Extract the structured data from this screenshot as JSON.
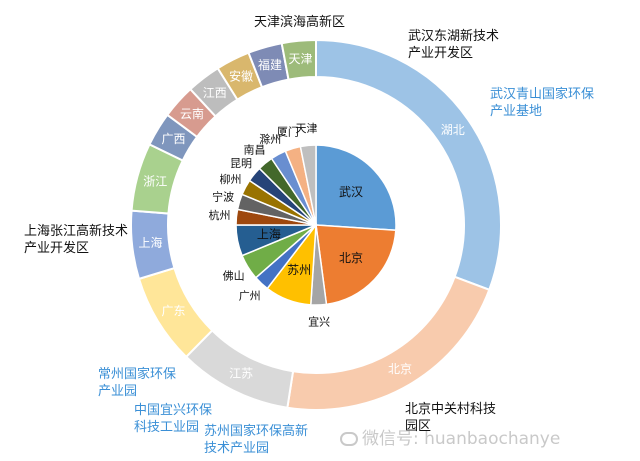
{
  "chart_data": {
    "type": "pie",
    "title": "",
    "outer_ring": {
      "slices": [
        {
          "label": "湖北",
          "value": 31,
          "color": "#9dc3e6"
        },
        {
          "label": "北京",
          "value": 22,
          "color": "#f8cbad"
        },
        {
          "label": "江苏",
          "value": 10,
          "color": "#d9d9d9"
        },
        {
          "label": "广东",
          "value": 8,
          "color": "#ffe699"
        },
        {
          "label": "上海",
          "value": 6,
          "color": "#8faadc"
        },
        {
          "label": "浙江",
          "value": 6,
          "color": "#a9d18e"
        },
        {
          "label": "广西",
          "value": 3,
          "color": "#7f96bd"
        },
        {
          "label": "云南",
          "value": 3,
          "color": "#d79b8f"
        },
        {
          "label": "江西",
          "value": 3,
          "color": "#bdbdbd"
        },
        {
          "label": "安徽",
          "value": 3,
          "color": "#d9b76d"
        },
        {
          "label": "福建",
          "value": 3,
          "color": "#7e8bb5"
        },
        {
          "label": "天津",
          "value": 3,
          "color": "#9dbb7a"
        }
      ]
    },
    "inner_pie": {
      "slices": [
        {
          "label": "武汉",
          "value": 25,
          "color": "#5b9bd5"
        },
        {
          "label": "北京",
          "value": 21,
          "color": "#ed7d31"
        },
        {
          "label": "宜兴",
          "value": 3,
          "color": "#a5a5a5"
        },
        {
          "label": "苏州",
          "value": 9,
          "color": "#ffc000"
        },
        {
          "label": "广州",
          "value": 3,
          "color": "#4472c4"
        },
        {
          "label": "佛山",
          "value": 5,
          "color": "#70ad47"
        },
        {
          "label": "上海",
          "value": 6,
          "color": "#255e91"
        },
        {
          "label": "杭州",
          "value": 3,
          "color": "#9e480e"
        },
        {
          "label": "宁波",
          "value": 3,
          "color": "#636363"
        },
        {
          "label": "柳州",
          "value": 3,
          "color": "#997300"
        },
        {
          "label": "昆明",
          "value": 3,
          "color": "#264478"
        },
        {
          "label": "南昌",
          "value": 3,
          "color": "#43682b"
        },
        {
          "label": "滁州",
          "value": 3,
          "color": "#698ed0"
        },
        {
          "label": "厦门",
          "value": 3,
          "color": "#f4b183"
        },
        {
          "label": "天津",
          "value": 3,
          "color": "#bfbfbf"
        }
      ]
    },
    "annotations": [
      {
        "text": "天津滨海高新区",
        "style": "dark"
      },
      {
        "text": "武汉东湖新技术产业开发区",
        "style": "dark"
      },
      {
        "text": "武汉青山国家环保产业基地",
        "style": "blue"
      },
      {
        "text": "上海张江高新技术产业开发区",
        "style": "dark"
      },
      {
        "text": "常州国家环保产业园",
        "style": "blue"
      },
      {
        "text": "中国宜兴环保科技工业园",
        "style": "blue"
      },
      {
        "text": "苏州国家环保高新技术产业园",
        "style": "blue"
      },
      {
        "text": "北京中关村科技园区",
        "style": "dark"
      }
    ]
  },
  "watermark": {
    "text": "微信号: huanbaochanye"
  }
}
